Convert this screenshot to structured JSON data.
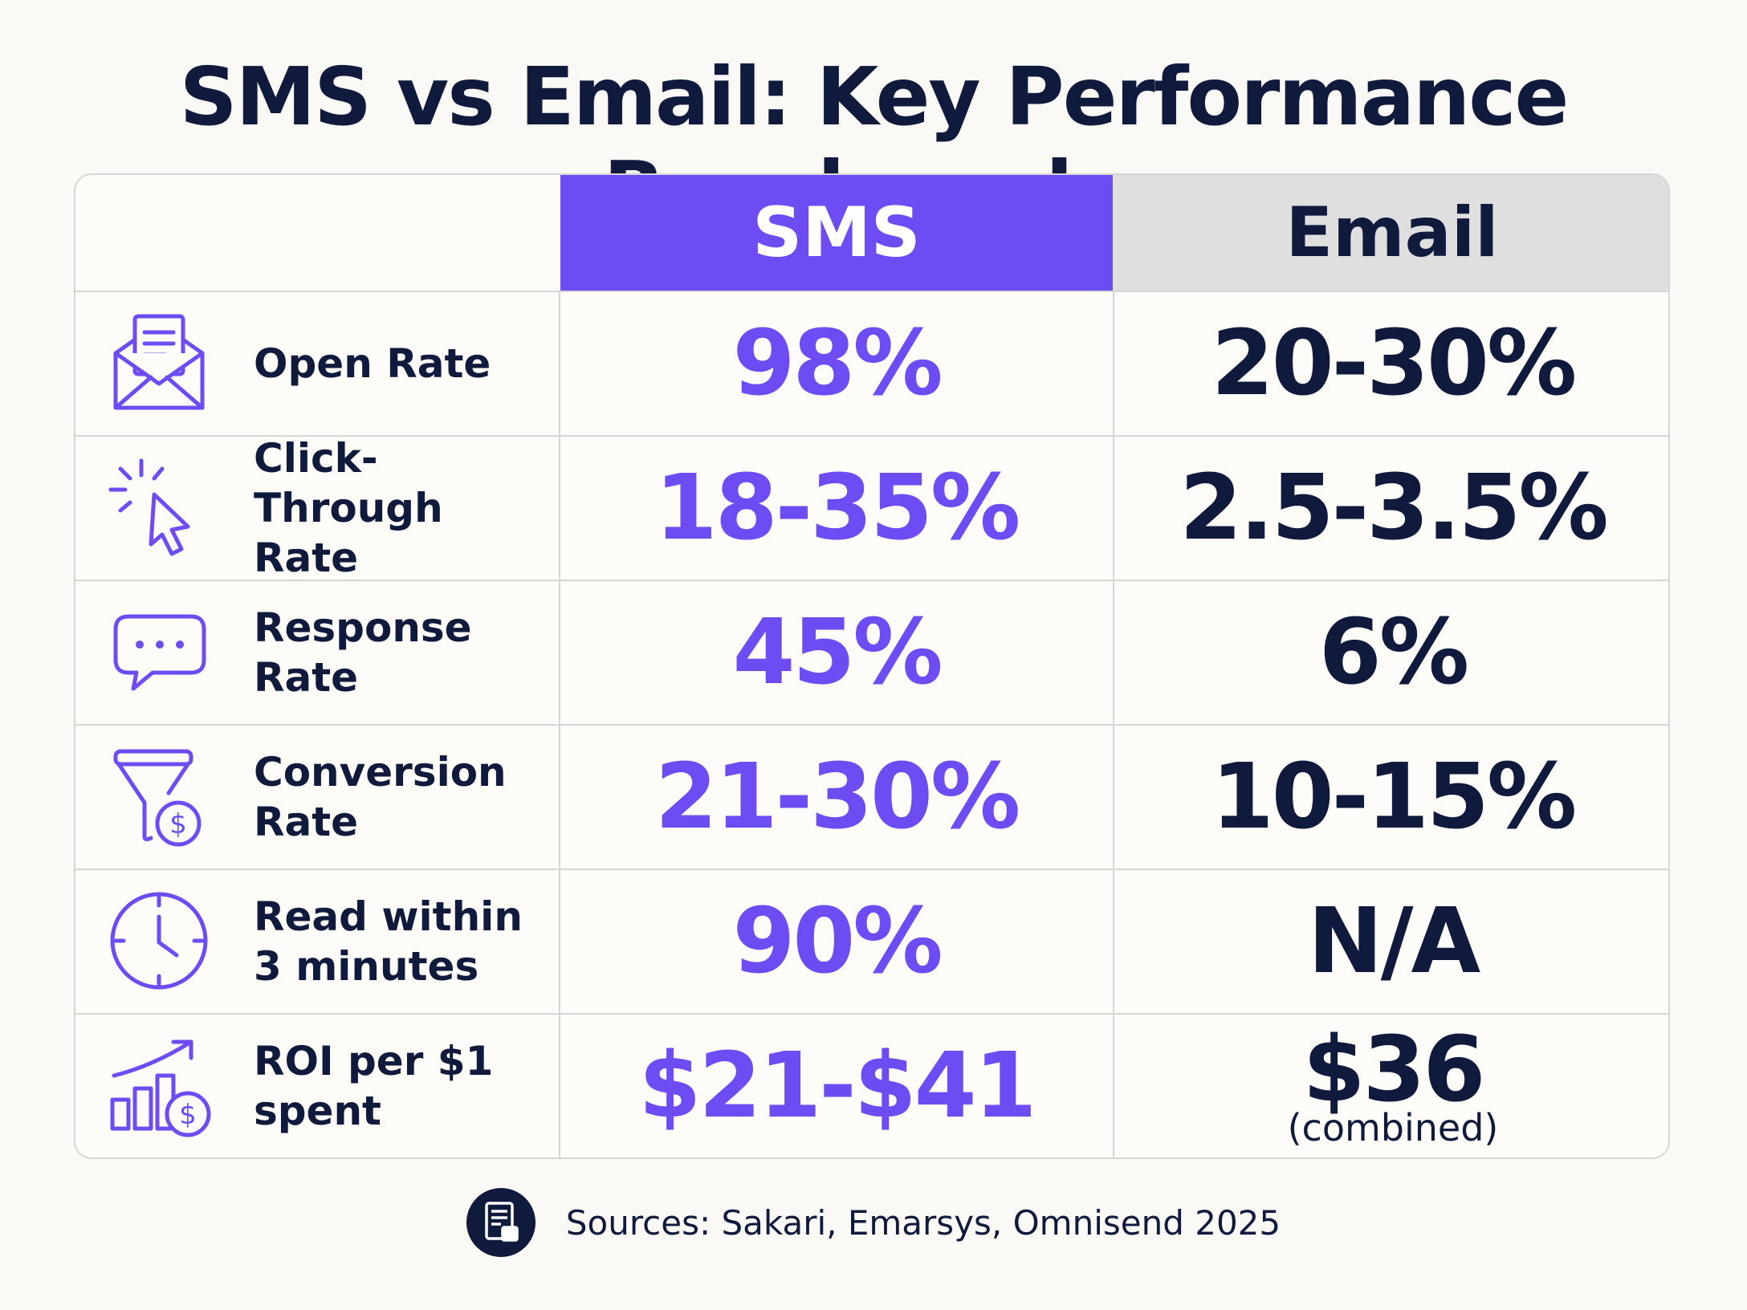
{
  "title": "SMS vs Email: Key Performance Benchmarks",
  "columns": {
    "sms": "SMS",
    "email": "Email"
  },
  "rows": [
    {
      "icon": "envelope-icon",
      "label": "Open Rate",
      "sms": "98%",
      "email": "20-30%",
      "email_note": ""
    },
    {
      "icon": "cursor-click-icon",
      "label": "Click-Through Rate",
      "sms": "18-35%",
      "email": "2.5-3.5%",
      "email_note": ""
    },
    {
      "icon": "chat-bubble-icon",
      "label": "Response Rate",
      "sms": "45%",
      "email": "6%",
      "email_note": ""
    },
    {
      "icon": "funnel-dollar-icon",
      "label": "Conversion Rate",
      "sms": "21-30%",
      "email": "10-15%",
      "email_note": ""
    },
    {
      "icon": "clock-icon",
      "label": "Read within 3 minutes",
      "sms": "90%",
      "email": "N/A",
      "email_note": ""
    },
    {
      "icon": "growth-chart-dollar-icon",
      "label": "ROI per $1 spent",
      "sms": "$21-$41",
      "email": "$36",
      "email_note": "(combined)"
    }
  ],
  "footer": {
    "icon": "document-chart-icon",
    "text": "Sources: Sakari, Emarsys, Omnisend 2025"
  },
  "colors": {
    "accent": "#6d4cf4",
    "dark": "#0f1a3c",
    "header_gray": "#dfdfdf",
    "background": "#faf9f5"
  }
}
